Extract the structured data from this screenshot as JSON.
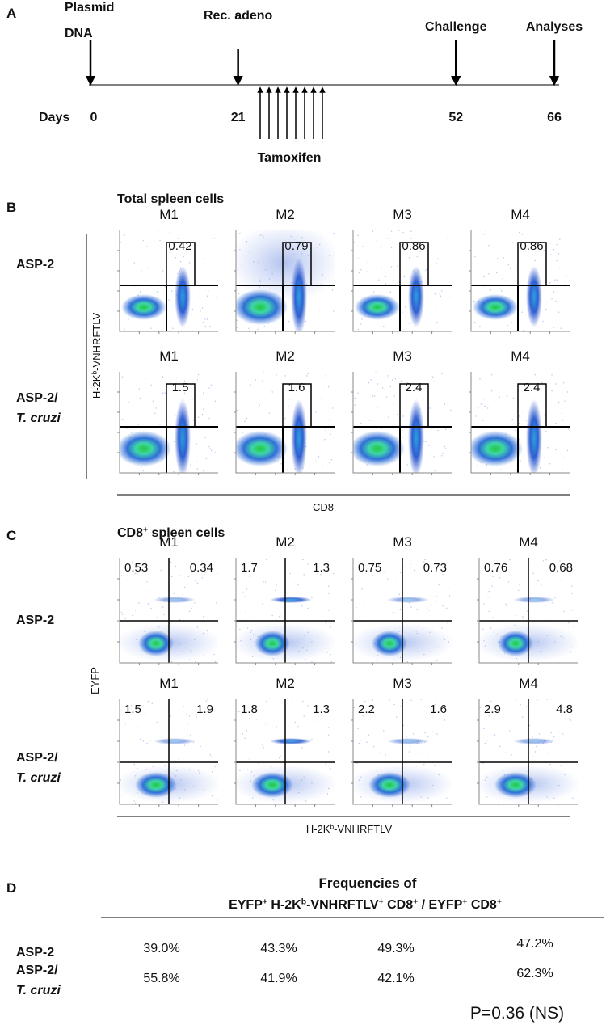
{
  "panel_a": {
    "label": "A",
    "days_label": "Days",
    "tamoxifen": "Tamoxifen",
    "events": [
      {
        "name": [
          "Plasmid",
          "DNA"
        ],
        "day": 0
      },
      {
        "name": [
          "Rec. adeno"
        ],
        "day": 21
      },
      {
        "name": [
          "Challenge"
        ],
        "day": 52
      },
      {
        "name": [
          "Analyses"
        ],
        "day": 66
      }
    ]
  },
  "panel_b": {
    "label": "B",
    "title": [
      [
        "Total spleen cells"
      ]
    ],
    "columns": [
      "M1",
      "M2",
      "M3",
      "M4"
    ],
    "rows": [
      {
        "name": [
          "ASP-2"
        ],
        "values": [
          "0.42",
          "0.79",
          "0.86",
          "0.86"
        ]
      },
      {
        "name": [
          "ASP-2/",
          "T. cruzi"
        ],
        "values": [
          "1.5",
          "1.6",
          "2.4",
          "2.4"
        ]
      }
    ],
    "y_label": [
      [
        "H-2K",
        "b"
      ],
      [
        "-VNHRFTLV"
      ]
    ],
    "x_label": [
      [
        "CD8"
      ]
    ]
  },
  "panel_c": {
    "label": "C",
    "title": [
      [
        "CD8",
        "+"
      ],
      [
        " spleen cells"
      ]
    ],
    "columns": [
      "M1",
      "M2",
      "M3",
      "M4"
    ],
    "rows": [
      {
        "name": [
          "ASP-2"
        ],
        "values": [
          [
            "0.53",
            "0.34"
          ],
          [
            "1.7",
            "1.3"
          ],
          [
            "0.75",
            "0.73"
          ],
          [
            "0.76",
            "0.68"
          ]
        ]
      },
      {
        "name": [
          "ASP-2/",
          "T. cruzi"
        ],
        "values": [
          [
            "1.5",
            "1.9"
          ],
          [
            "1.8",
            "1.3"
          ],
          [
            "2.2",
            "1.6"
          ],
          [
            "2.9",
            "4.8"
          ]
        ]
      }
    ],
    "y_label": [
      [
        "EYFP"
      ]
    ],
    "x_label": [
      [
        "H-2K",
        "b"
      ],
      [
        "-VNHRFTLV"
      ]
    ]
  },
  "panel_d": {
    "label": "D",
    "title": "Frequencies of",
    "subtitle": [
      [
        "EYFP",
        "+"
      ],
      [
        " H-2K",
        "b"
      ],
      [
        "-VNHRFTLV",
        "+"
      ],
      [
        " CD8",
        "+"
      ],
      [
        " / EYFP",
        "+"
      ],
      [
        " CD8",
        "+"
      ]
    ],
    "rows": [
      {
        "name": [
          "ASP-2"
        ],
        "values": [
          "39.0%",
          "43.3%",
          "49.3%",
          "47.2%"
        ]
      },
      {
        "name": [
          "ASP-2/",
          "T. cruzi"
        ],
        "values": [
          "55.8%",
          "41.9%",
          "42.1%",
          "62.3%"
        ]
      }
    ],
    "p_value": "P=0.36 (NS)"
  }
}
